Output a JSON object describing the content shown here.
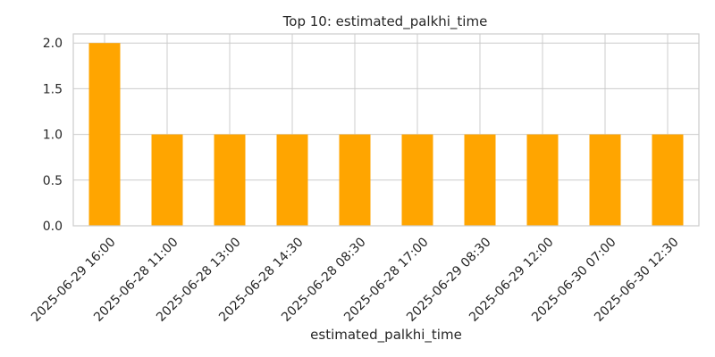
{
  "chart_data": {
    "type": "bar",
    "title": "Top 10: estimated_palkhi_time",
    "xlabel": "estimated_palkhi_time",
    "ylabel": "",
    "categories": [
      "2025-06-29 16:00",
      "2025-06-28 11:00",
      "2025-06-28 13:00",
      "2025-06-28 14:30",
      "2025-06-28 08:30",
      "2025-06-28 17:00",
      "2025-06-29 08:30",
      "2025-06-29 12:00",
      "2025-06-30 07:00",
      "2025-06-30 12:30"
    ],
    "values": [
      2,
      1,
      1,
      1,
      1,
      1,
      1,
      1,
      1,
      1
    ],
    "ylim": [
      0,
      2.1
    ],
    "yticks": [
      "0.0",
      "0.5",
      "1.0",
      "1.5",
      "2.0"
    ],
    "grid": true,
    "bar_color": "#ffa500",
    "grid_color": "#cccccc"
  }
}
